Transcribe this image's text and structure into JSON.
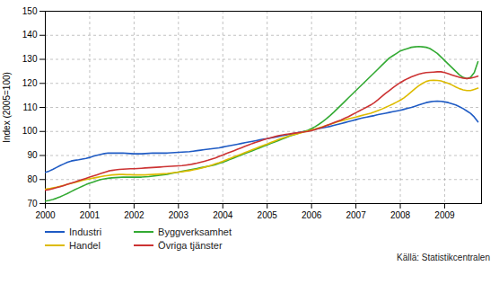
{
  "chart_data": {
    "type": "line",
    "ylabel": "Index (2005=100)",
    "source": "Källä: Statistikcentralen",
    "xlim": [
      2000.0,
      2009.83
    ],
    "ylim": [
      70,
      150
    ],
    "xticks": [
      2000,
      2001,
      2002,
      2003,
      2004,
      2005,
      2006,
      2007,
      2008,
      2009
    ],
    "yticks": [
      70,
      80,
      90,
      100,
      110,
      120,
      130,
      140,
      150
    ],
    "grid": true,
    "legend": "bottom",
    "x": [
      2000.0,
      2000.083,
      2000.167,
      2000.25,
      2000.333,
      2000.417,
      2000.5,
      2000.583,
      2000.667,
      2000.75,
      2000.833,
      2000.917,
      2001.0,
      2001.083,
      2001.167,
      2001.25,
      2001.333,
      2001.417,
      2001.5,
      2001.583,
      2001.667,
      2001.75,
      2001.833,
      2001.917,
      2002.0,
      2002.083,
      2002.167,
      2002.25,
      2002.333,
      2002.417,
      2002.5,
      2002.583,
      2002.667,
      2002.75,
      2002.833,
      2002.917,
      2003.0,
      2003.083,
      2003.167,
      2003.25,
      2003.333,
      2003.417,
      2003.5,
      2003.583,
      2003.667,
      2003.75,
      2003.833,
      2003.917,
      2004.0,
      2004.083,
      2004.167,
      2004.25,
      2004.333,
      2004.417,
      2004.5,
      2004.583,
      2004.667,
      2004.75,
      2004.833,
      2004.917,
      2005.0,
      2005.083,
      2005.167,
      2005.25,
      2005.333,
      2005.417,
      2005.5,
      2005.583,
      2005.667,
      2005.75,
      2005.833,
      2005.917,
      2006.0,
      2006.083,
      2006.167,
      2006.25,
      2006.333,
      2006.417,
      2006.5,
      2006.583,
      2006.667,
      2006.75,
      2006.833,
      2006.917,
      2007.0,
      2007.083,
      2007.167,
      2007.25,
      2007.333,
      2007.417,
      2007.5,
      2007.583,
      2007.667,
      2007.75,
      2007.833,
      2007.917,
      2008.0,
      2008.083,
      2008.167,
      2008.25,
      2008.333,
      2008.417,
      2008.5,
      2008.583,
      2008.667,
      2008.75,
      2008.833,
      2008.917,
      2009.0,
      2009.083,
      2009.167,
      2009.25,
      2009.333,
      2009.417,
      2009.5,
      2009.583,
      2009.667,
      2009.75
    ],
    "series": [
      {
        "name": "Industri",
        "color": "#1F5BC4",
        "values": [
          83.0,
          83.5,
          84.2,
          85.0,
          85.8,
          86.5,
          87.2,
          87.7,
          88.0,
          88.2,
          88.5,
          88.8,
          89.2,
          89.7,
          90.1,
          90.5,
          90.8,
          91.0,
          91.0,
          91.0,
          91.0,
          91.0,
          90.9,
          90.8,
          90.7,
          90.7,
          90.7,
          90.8,
          90.9,
          91.0,
          91.0,
          91.0,
          91.0,
          91.0,
          91.1,
          91.2,
          91.3,
          91.4,
          91.5,
          91.6,
          91.8,
          92.0,
          92.2,
          92.4,
          92.6,
          92.8,
          93.0,
          93.2,
          93.5,
          93.8,
          94.1,
          94.4,
          94.7,
          95.0,
          95.3,
          95.6,
          95.9,
          96.2,
          96.5,
          96.8,
          97.0,
          97.3,
          97.6,
          97.9,
          98.2,
          98.5,
          98.8,
          99.1,
          99.4,
          99.7,
          100.0,
          100.3,
          100.6,
          100.9,
          101.2,
          101.5,
          101.8,
          102.1,
          102.5,
          102.9,
          103.3,
          103.7,
          104.1,
          104.5,
          104.9,
          105.3,
          105.7,
          106.0,
          106.3,
          106.6,
          107.0,
          107.3,
          107.6,
          107.9,
          108.2,
          108.5,
          108.8,
          109.2,
          109.6,
          110.0,
          110.5,
          111.0,
          111.5,
          112.0,
          112.3,
          112.5,
          112.6,
          112.5,
          112.3,
          112.0,
          111.5,
          111.0,
          110.3,
          109.5,
          108.5,
          107.5,
          106.0,
          104.0
        ]
      },
      {
        "name": "Byggverksamhet",
        "color": "#33AA33",
        "values": [
          71.0,
          71.3,
          71.7,
          72.2,
          72.8,
          73.5,
          74.2,
          75.0,
          75.8,
          76.5,
          77.2,
          77.9,
          78.5,
          79.0,
          79.5,
          80.0,
          80.3,
          80.5,
          80.7,
          80.8,
          80.9,
          81.0,
          81.0,
          81.0,
          81.0,
          81.0,
          81.0,
          81.1,
          81.2,
          81.4,
          81.6,
          81.8,
          82.0,
          82.2,
          82.5,
          82.8,
          83.1,
          83.4,
          83.7,
          84.0,
          84.3,
          84.6,
          84.9,
          85.2,
          85.5,
          85.8,
          86.2,
          86.7,
          87.2,
          87.8,
          88.4,
          89.0,
          89.6,
          90.2,
          90.8,
          91.4,
          92.0,
          92.6,
          93.2,
          93.8,
          94.4,
          95.0,
          95.6,
          96.2,
          96.8,
          97.4,
          98.0,
          98.5,
          99.0,
          99.5,
          100.0,
          100.5,
          101.2,
          102.0,
          103.0,
          104.1,
          105.3,
          106.6,
          108.0,
          109.5,
          111.0,
          112.5,
          114.0,
          115.5,
          117.0,
          118.5,
          120.0,
          121.5,
          123.0,
          124.5,
          126.0,
          127.5,
          129.0,
          130.5,
          131.5,
          132.5,
          133.5,
          134.0,
          134.5,
          135.0,
          135.2,
          135.3,
          135.2,
          135.0,
          134.5,
          133.5,
          132.5,
          131.0,
          129.5,
          128.0,
          126.5,
          125.0,
          123.5,
          122.5,
          122.0,
          122.5,
          124.5,
          129.0
        ]
      },
      {
        "name": "Handel",
        "color": "#DDBB00",
        "values": [
          76.0,
          76.2,
          76.5,
          76.8,
          77.2,
          77.6,
          78.0,
          78.4,
          78.8,
          79.2,
          79.6,
          80.0,
          80.3,
          80.6,
          80.9,
          81.2,
          81.5,
          81.7,
          81.9,
          82.0,
          82.1,
          82.1,
          82.0,
          82.0,
          81.9,
          81.9,
          81.9,
          81.9,
          82.0,
          82.1,
          82.2,
          82.3,
          82.4,
          82.5,
          82.7,
          82.9,
          83.1,
          83.3,
          83.5,
          83.7,
          84.0,
          84.3,
          84.7,
          85.1,
          85.5,
          86.0,
          86.5,
          87.0,
          87.6,
          88.2,
          88.8,
          89.4,
          90.0,
          90.6,
          91.2,
          91.8,
          92.4,
          93.0,
          93.6,
          94.2,
          94.8,
          95.4,
          96.0,
          96.6,
          97.2,
          97.7,
          98.2,
          98.6,
          99.0,
          99.4,
          99.8,
          100.2,
          100.6,
          101.0,
          101.5,
          102.0,
          102.5,
          103.0,
          103.5,
          104.0,
          104.4,
          104.8,
          105.2,
          105.6,
          106.0,
          106.4,
          106.8,
          107.2,
          107.6,
          108.1,
          108.7,
          109.3,
          110.0,
          110.7,
          111.4,
          112.2,
          113.0,
          114.0,
          115.2,
          116.5,
          117.8,
          119.0,
          120.0,
          120.8,
          121.2,
          121.3,
          121.2,
          121.0,
          120.5,
          120.0,
          119.3,
          118.5,
          117.8,
          117.3,
          117.0,
          117.0,
          117.5,
          118.0
        ]
      },
      {
        "name": "Övriga tjänster",
        "color": "#CC3333",
        "values": [
          75.5,
          75.8,
          76.2,
          76.6,
          77.0,
          77.5,
          78.0,
          78.5,
          79.0,
          79.5,
          80.0,
          80.5,
          81.0,
          81.5,
          82.0,
          82.5,
          83.0,
          83.5,
          83.8,
          84.0,
          84.2,
          84.3,
          84.4,
          84.5,
          84.5,
          84.6,
          84.7,
          84.8,
          84.9,
          85.0,
          85.1,
          85.2,
          85.3,
          85.4,
          85.5,
          85.6,
          85.7,
          85.8,
          86.0,
          86.2,
          86.5,
          86.8,
          87.2,
          87.6,
          88.0,
          88.5,
          89.0,
          89.6,
          90.2,
          90.8,
          91.4,
          92.0,
          92.6,
          93.2,
          93.8,
          94.4,
          95.0,
          95.5,
          96.0,
          96.5,
          97.0,
          97.4,
          97.8,
          98.2,
          98.5,
          98.8,
          99.0,
          99.2,
          99.4,
          99.6,
          99.8,
          100.0,
          100.4,
          100.8,
          101.3,
          101.8,
          102.4,
          103.0,
          103.6,
          104.2,
          104.8,
          105.5,
          106.2,
          107.0,
          107.8,
          108.6,
          109.4,
          110.2,
          111.0,
          112.0,
          113.2,
          114.5,
          115.8,
          117.0,
          118.2,
          119.3,
          120.3,
          121.2,
          122.0,
          122.7,
          123.3,
          123.8,
          124.2,
          124.5,
          124.6,
          124.7,
          124.8,
          124.8,
          124.5,
          124.0,
          123.5,
          123.0,
          122.5,
          122.2,
          122.0,
          122.2,
          122.5,
          123.0
        ]
      }
    ]
  }
}
